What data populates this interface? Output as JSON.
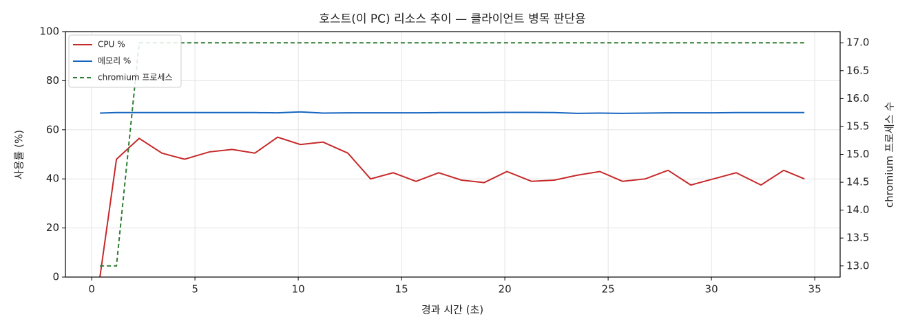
{
  "chart_data": {
    "type": "line",
    "title": "호스트(이 PC) 리소스 추이 — 클라이언트 병목 판단용",
    "x_label": "경과 시간 (초)",
    "y_label": "사용률 (%)",
    "y2_label": "chromium 프로세스 수",
    "x": [
      0.4,
      1.2,
      2.3,
      3.4,
      4.5,
      5.7,
      6.8,
      7.9,
      9.0,
      10.1,
      11.2,
      12.4,
      13.5,
      14.6,
      15.7,
      16.8,
      17.9,
      19.0,
      20.1,
      21.3,
      22.4,
      23.5,
      24.6,
      25.7,
      26.8,
      27.9,
      29.0,
      30.1,
      31.2,
      32.4,
      33.5,
      34.5
    ],
    "series": [
      {
        "name": "CPU %",
        "color": "#c62828",
        "linestyle": "solid",
        "values": [
          0,
          48,
          56.5,
          50.5,
          48,
          51,
          52,
          50.5,
          57,
          54,
          55,
          50.5,
          40,
          42.5,
          39,
          42.5,
          39.5,
          38.5,
          43,
          39,
          39.5,
          41.5,
          43,
          39,
          40,
          43.5,
          37.5,
          40,
          42.5,
          37.5,
          43.5,
          40
        ]
      },
      {
        "name": "메모리 %",
        "color": "#1565c0",
        "linestyle": "solid",
        "values": [
          66.8,
          67,
          67,
          67,
          67,
          67,
          67,
          67,
          66.9,
          67.3,
          66.8,
          66.9,
          66.9,
          66.9,
          66.9,
          67,
          67,
          67,
          67.1,
          67.1,
          67,
          66.7,
          66.8,
          66.7,
          66.8,
          66.9,
          66.9,
          66.9,
          67,
          67,
          67,
          67
        ]
      },
      {
        "name": "chromium 프로세스",
        "color": "#2e7d32",
        "linestyle": "dashed",
        "axis": "y2",
        "values": [
          13,
          13,
          17,
          17,
          17,
          17,
          17,
          17,
          17,
          17,
          17,
          17,
          17,
          17,
          17,
          17,
          17,
          17,
          17,
          17,
          17,
          17,
          17,
          17,
          17,
          17,
          17,
          17,
          17,
          17,
          17,
          17
        ]
      }
    ],
    "xlim": [
      -1.27,
      36.23
    ],
    "xticks": [
      0,
      5,
      10,
      15,
      20,
      25,
      30,
      35
    ],
    "ylim": [
      0,
      100
    ],
    "yticks": [
      0,
      20,
      40,
      60,
      80,
      100
    ],
    "y2lim": [
      12.8,
      17.2
    ],
    "y2ticks": [
      {
        "value": 13,
        "label": "13.0"
      },
      {
        "value": 13.5,
        "label": "13.5"
      },
      {
        "value": 14,
        "label": "14.0"
      },
      {
        "value": 14.5,
        "label": "14.5"
      },
      {
        "value": 15,
        "label": "15.0"
      },
      {
        "value": 15.5,
        "label": "15.5"
      },
      {
        "value": 16,
        "label": "16.0"
      },
      {
        "value": 16.5,
        "label": "16.5"
      },
      {
        "value": 17,
        "label": "17.0"
      }
    ],
    "grid": true,
    "legend": "upper-left"
  }
}
